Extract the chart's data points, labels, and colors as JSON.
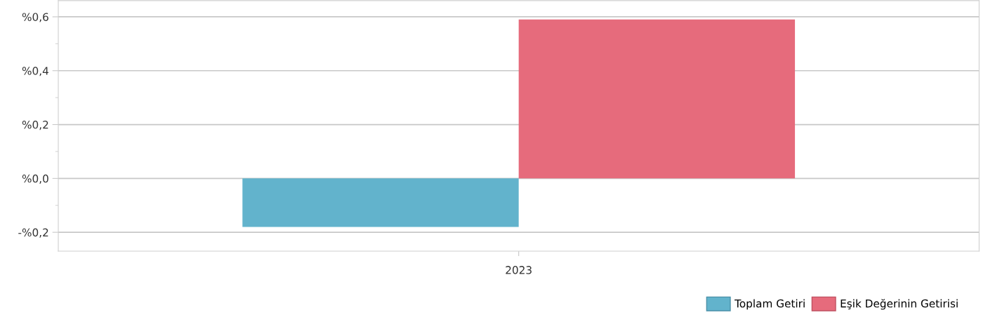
{
  "chart_data": {
    "type": "bar",
    "categories": [
      "2023"
    ],
    "series": [
      {
        "name": "Toplam Getiri",
        "color": "#62b3cc",
        "values": [
          -0.18
        ]
      },
      {
        "name": "Eşik Değerinin Getirisi",
        "color": "#e66b7c",
        "values": [
          0.59
        ]
      }
    ],
    "ylim": [
      -0.27,
      0.66
    ],
    "yticks": [
      {
        "value": -0.2,
        "label": "-%0,2"
      },
      {
        "value": 0,
        "label": "%0,0"
      },
      {
        "value": 0.2,
        "label": "%0,2"
      },
      {
        "value": 0.4,
        "label": "%0,4"
      },
      {
        "value": 0.6,
        "label": "%0,6"
      }
    ],
    "grid": "y",
    "legend": "bottom right"
  }
}
